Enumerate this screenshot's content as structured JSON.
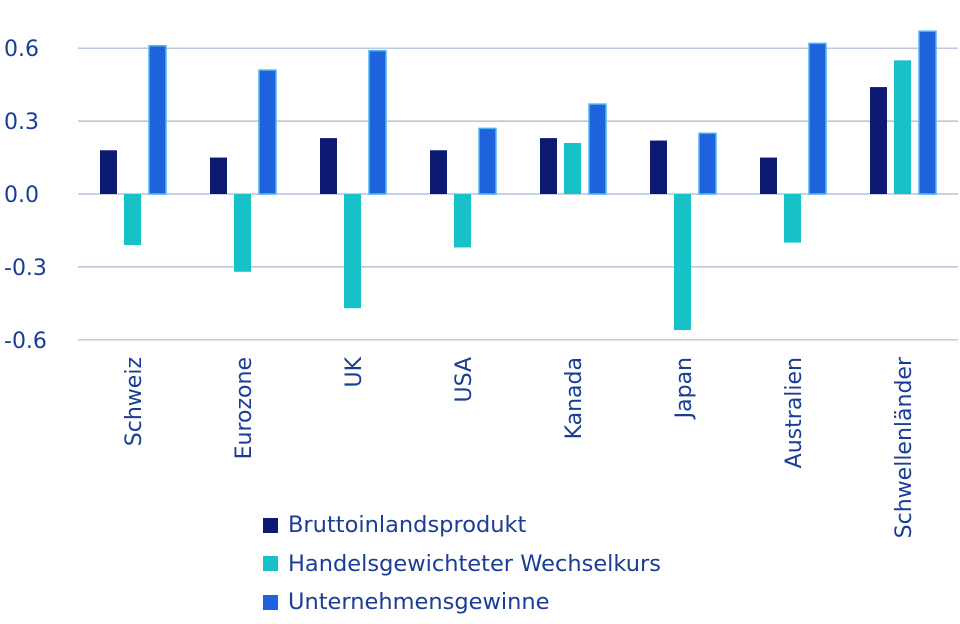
{
  "chart_data": {
    "type": "bar",
    "categories": [
      "Schweiz",
      "Eurozone",
      "UK",
      "USA",
      "Kanada",
      "Japan",
      "Australien",
      "Schwellenländer"
    ],
    "series": [
      {
        "name": "Bruttoinlandsprodukt",
        "color": "#0d1a73",
        "values": [
          0.18,
          0.15,
          0.23,
          0.18,
          0.23,
          0.22,
          0.15,
          0.44
        ]
      },
      {
        "name": "Handelsgewichteter Wechselkurs",
        "color": "#16c1c8",
        "values": [
          -0.21,
          -0.32,
          -0.47,
          -0.22,
          0.21,
          -0.56,
          -0.2,
          0.55
        ]
      },
      {
        "name": "Unternehmensgewinne",
        "color": "#1f63dc",
        "values": [
          0.61,
          0.51,
          0.59,
          0.27,
          0.37,
          0.25,
          0.62,
          0.67
        ]
      }
    ],
    "yticks": [
      "0.6",
      "0.3",
      "0.0",
      "-0.3",
      "-0.6"
    ],
    "ylim": [
      -0.6,
      0.6
    ],
    "grid": true,
    "legend_position": "bottom"
  }
}
